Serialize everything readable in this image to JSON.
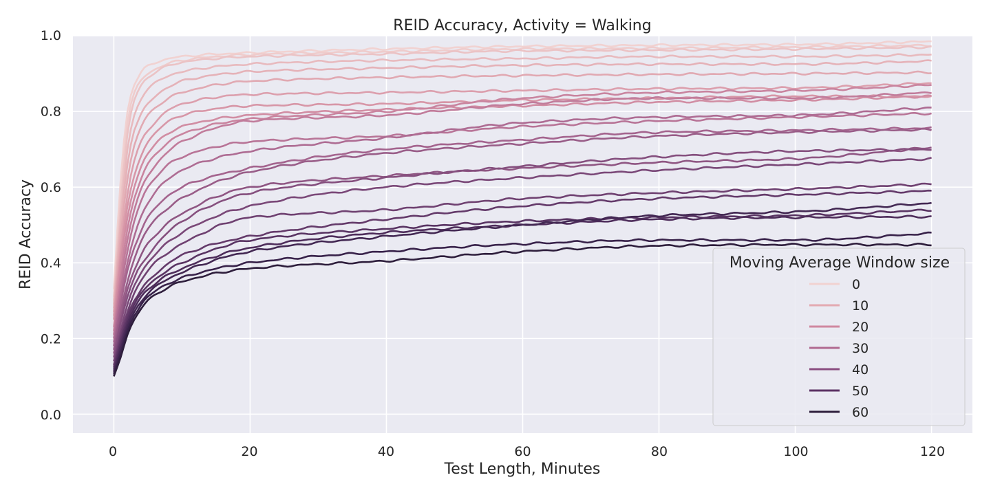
{
  "chart_data": {
    "type": "line",
    "title": "REID Accuracy, Activity = Walking",
    "xlabel": "Test Length, Minutes",
    "ylabel": "REID Accuracy",
    "xlim": [
      -6,
      126
    ],
    "ylim": [
      -0.05,
      1.0
    ],
    "x_ticks": [
      "0",
      "20",
      "40",
      "60",
      "80",
      "100",
      "120"
    ],
    "y_ticks": [
      "0.0",
      "0.2",
      "0.4",
      "0.6",
      "0.8",
      "1.0"
    ],
    "grid": true,
    "background": "#eaeaf2",
    "legend": {
      "title": "Moving Average Window size",
      "placement": "lower-right",
      "entries": [
        {
          "label": "0",
          "color": "#f1d2d1"
        },
        {
          "label": "10",
          "color": "#e3aab1"
        },
        {
          "label": "20",
          "color": "#d088a0"
        },
        {
          "label": "30",
          "color": "#b06990"
        },
        {
          "label": "40",
          "color": "#8a4d80"
        },
        {
          "label": "50",
          "color": "#5c3264"
        },
        {
          "label": "60",
          "color": "#2e1e3c"
        }
      ]
    },
    "x": [
      0,
      1,
      2,
      3,
      5,
      10,
      20,
      40,
      60,
      80,
      100,
      120
    ],
    "series": [
      {
        "color": "#f1d2d1",
        "values": [
          0.33,
          0.62,
          0.8,
          0.87,
          0.92,
          0.945,
          0.955,
          0.965,
          0.972,
          0.975,
          0.977,
          0.985
        ]
      },
      {
        "color": "#efcccc",
        "values": [
          0.31,
          0.58,
          0.77,
          0.85,
          0.9,
          0.935,
          0.95,
          0.958,
          0.965,
          0.967,
          0.97,
          0.975
        ]
      },
      {
        "color": "#ebc3c5",
        "values": [
          0.3,
          0.55,
          0.74,
          0.83,
          0.89,
          0.93,
          0.945,
          0.952,
          0.96,
          0.962,
          0.965,
          0.97
        ]
      },
      {
        "color": "#e8babe",
        "values": [
          0.29,
          0.52,
          0.7,
          0.79,
          0.86,
          0.905,
          0.925,
          0.935,
          0.94,
          0.945,
          0.945,
          0.95
        ]
      },
      {
        "color": "#e5b2b8",
        "values": [
          0.28,
          0.5,
          0.66,
          0.75,
          0.82,
          0.88,
          0.905,
          0.915,
          0.922,
          0.925,
          0.925,
          0.933
        ]
      },
      {
        "color": "#e1a9b2",
        "values": [
          0.27,
          0.47,
          0.62,
          0.71,
          0.79,
          0.85,
          0.88,
          0.89,
          0.895,
          0.898,
          0.9,
          0.903
        ]
      },
      {
        "color": "#dc9fad",
        "values": [
          0.26,
          0.44,
          0.58,
          0.67,
          0.75,
          0.82,
          0.845,
          0.85,
          0.855,
          0.86,
          0.862,
          0.875
        ]
      },
      {
        "color": "#d796a7",
        "values": [
          0.25,
          0.42,
          0.55,
          0.63,
          0.72,
          0.79,
          0.815,
          0.82,
          0.83,
          0.835,
          0.84,
          0.84
        ]
      },
      {
        "color": "#d18da3",
        "values": [
          0.23,
          0.4,
          0.52,
          0.6,
          0.69,
          0.76,
          0.79,
          0.805,
          0.815,
          0.825,
          0.83,
          0.84
        ]
      },
      {
        "color": "#c9849f",
        "values": [
          0.22,
          0.37,
          0.49,
          0.57,
          0.66,
          0.74,
          0.78,
          0.8,
          0.835,
          0.85,
          0.855,
          0.87
        ]
      },
      {
        "color": "#c17c9b",
        "values": [
          0.21,
          0.35,
          0.46,
          0.54,
          0.63,
          0.72,
          0.775,
          0.79,
          0.82,
          0.835,
          0.835,
          0.85
        ]
      },
      {
        "color": "#b87497",
        "values": [
          0.2,
          0.33,
          0.43,
          0.51,
          0.6,
          0.68,
          0.72,
          0.735,
          0.76,
          0.775,
          0.785,
          0.795
        ]
      },
      {
        "color": "#ae6c93",
        "values": [
          0.19,
          0.31,
          0.4,
          0.47,
          0.56,
          0.645,
          0.695,
          0.73,
          0.77,
          0.785,
          0.79,
          0.81
        ]
      },
      {
        "color": "#a4648e",
        "values": [
          0.18,
          0.29,
          0.38,
          0.44,
          0.52,
          0.6,
          0.65,
          0.7,
          0.725,
          0.745,
          0.75,
          0.756
        ]
      },
      {
        "color": "#995d88",
        "values": [
          0.17,
          0.27,
          0.35,
          0.41,
          0.49,
          0.57,
          0.64,
          0.69,
          0.715,
          0.735,
          0.745,
          0.752
        ]
      },
      {
        "color": "#8f5683",
        "values": [
          0.16,
          0.25,
          0.33,
          0.38,
          0.45,
          0.53,
          0.6,
          0.63,
          0.65,
          0.665,
          0.675,
          0.705
        ]
      },
      {
        "color": "#854f7e",
        "values": [
          0.15,
          0.24,
          0.31,
          0.36,
          0.42,
          0.51,
          0.585,
          0.625,
          0.655,
          0.68,
          0.695,
          0.7
        ]
      },
      {
        "color": "#7a4878",
        "values": [
          0.14,
          0.22,
          0.29,
          0.34,
          0.4,
          0.48,
          0.55,
          0.6,
          0.625,
          0.645,
          0.66,
          0.675
        ]
      },
      {
        "color": "#6f4171",
        "values": [
          0.13,
          0.21,
          0.27,
          0.32,
          0.38,
          0.45,
          0.52,
          0.54,
          0.57,
          0.585,
          0.595,
          0.608
        ]
      },
      {
        "color": "#643a6a",
        "values": [
          0.125,
          0.2,
          0.26,
          0.3,
          0.35,
          0.42,
          0.47,
          0.515,
          0.55,
          0.57,
          0.58,
          0.59
        ]
      },
      {
        "color": "#593463",
        "values": [
          0.12,
          0.19,
          0.25,
          0.29,
          0.34,
          0.4,
          0.46,
          0.49,
          0.51,
          0.52,
          0.525,
          0.54
        ]
      },
      {
        "color": "#4e2d5b",
        "values": [
          0.115,
          0.18,
          0.24,
          0.28,
          0.33,
          0.385,
          0.44,
          0.48,
          0.5,
          0.515,
          0.52,
          0.522
        ]
      },
      {
        "color": "#432853",
        "values": [
          0.11,
          0.17,
          0.23,
          0.27,
          0.32,
          0.375,
          0.43,
          0.47,
          0.5,
          0.525,
          0.535,
          0.558
        ]
      },
      {
        "color": "#38224a",
        "values": [
          0.105,
          0.16,
          0.22,
          0.26,
          0.31,
          0.36,
          0.4,
          0.43,
          0.45,
          0.46,
          0.46,
          0.478
        ]
      },
      {
        "color": "#2e1e3c",
        "values": [
          0.1,
          0.15,
          0.21,
          0.25,
          0.3,
          0.35,
          0.385,
          0.405,
          0.43,
          0.445,
          0.448,
          0.448
        ]
      }
    ]
  }
}
